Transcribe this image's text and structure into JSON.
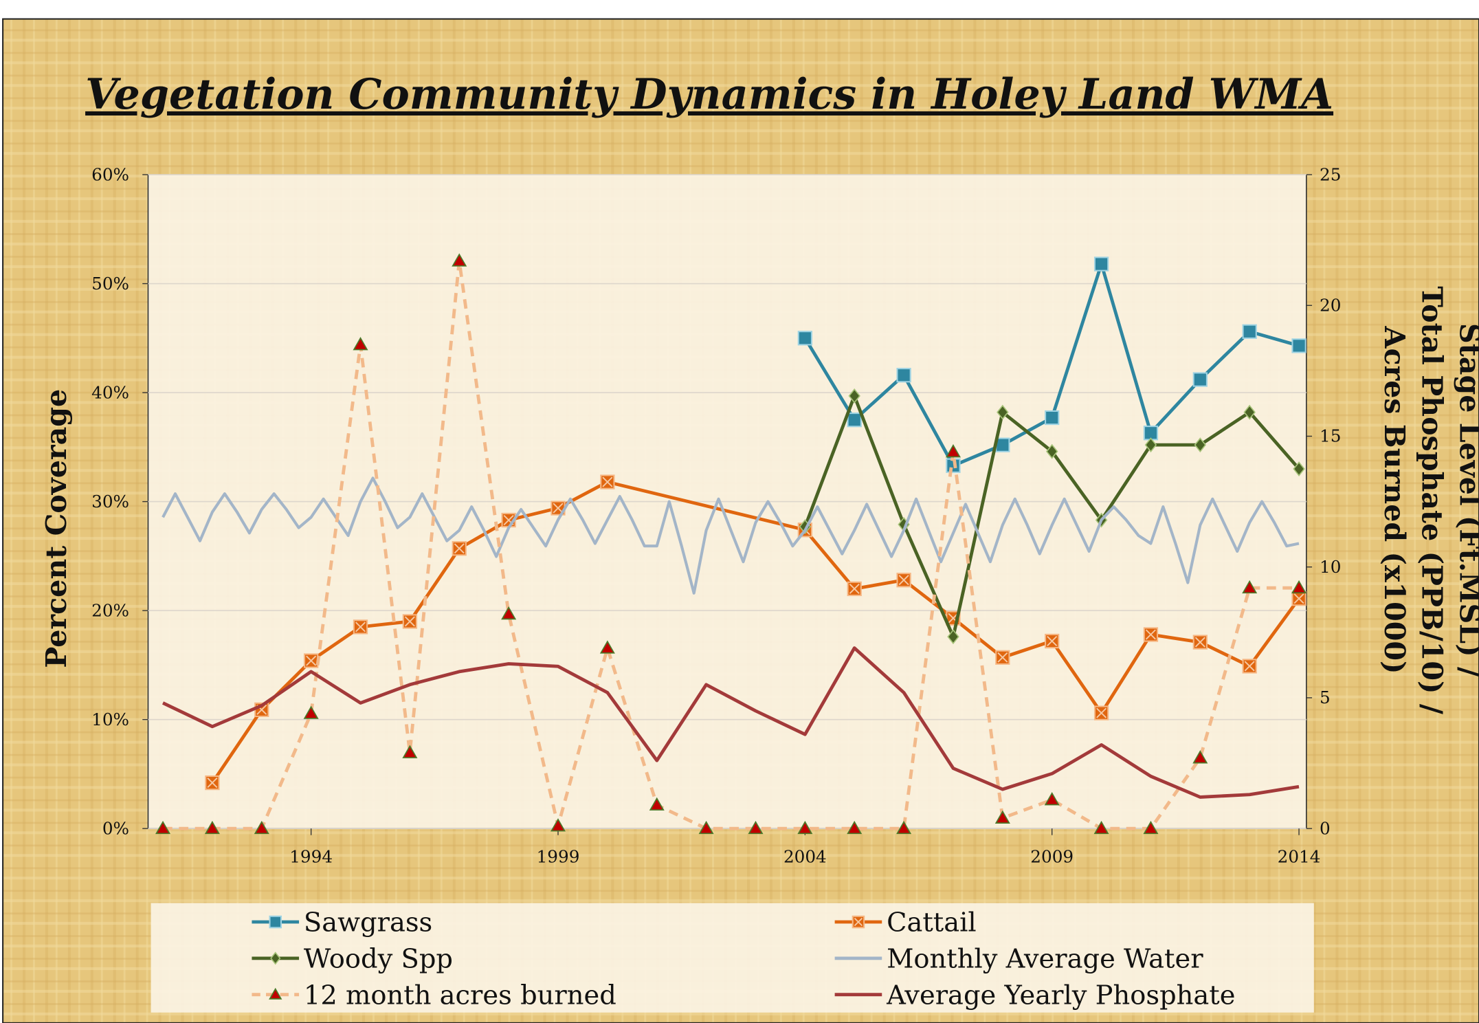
{
  "chart_data": {
    "type": "line",
    "title": "Vegetation Community Dynamics in Holey Land WMA",
    "y_label": "Percent Coverage",
    "y2_label": [
      "Stage Level (Ft.MSL) /",
      "Total Phosphate (PPB/10) /",
      "Acres Burned (x1000)"
    ],
    "xlim": [
      1990.7,
      2014.15
    ],
    "xticks": [
      1994,
      1999,
      2004,
      2009,
      2014
    ],
    "ylim": [
      0,
      60
    ],
    "yticks": [
      {
        "value": 0,
        "label": "0%"
      },
      {
        "value": 10,
        "label": "10%"
      },
      {
        "value": 20,
        "label": "20%"
      },
      {
        "value": 30,
        "label": "30%"
      },
      {
        "value": 40,
        "label": "40%"
      },
      {
        "value": 50,
        "label": "50%"
      },
      {
        "value": 60,
        "label": "60%"
      }
    ],
    "y2lim": [
      0,
      25
    ],
    "y2ticks": [
      0,
      5,
      10,
      15,
      20,
      25
    ],
    "grid": true,
    "legend": "bottom",
    "series": [
      {
        "name": "Sawgrass",
        "color": "#2e86a0",
        "marker": "square",
        "axis": "y",
        "x": [
          2004,
          2005,
          2006,
          2007,
          2008,
          2009,
          2010,
          2011,
          2012,
          2013,
          2014
        ],
        "values": [
          45.0,
          37.5,
          41.6,
          33.3,
          35.2,
          37.7,
          51.8,
          36.3,
          41.2,
          45.6,
          44.3
        ]
      },
      {
        "name": "Cattail",
        "color": "#e0660f",
        "marker": "square-x",
        "axis": "y",
        "x": [
          1992,
          1993,
          1994,
          1995,
          1996,
          1997,
          1998,
          1999,
          2000,
          2004,
          2005,
          2006,
          2007,
          2008,
          2009,
          2010,
          2011,
          2012,
          2013,
          2014
        ],
        "values": [
          4.2,
          10.9,
          15.4,
          18.5,
          19.0,
          25.7,
          28.3,
          29.4,
          31.8,
          27.4,
          22.0,
          22.8,
          19.3,
          15.7,
          17.2,
          10.6,
          17.8,
          17.1,
          14.9,
          21.1
        ]
      },
      {
        "name": "Woody Spp",
        "color": "#4a6324",
        "marker": "diamond",
        "axis": "y",
        "x": [
          2004,
          2005,
          2006,
          2007,
          2008,
          2009,
          2010,
          2011,
          2012,
          2013,
          2014
        ],
        "values": [
          27.7,
          39.7,
          27.9,
          17.6,
          38.2,
          34.6,
          28.3,
          35.2,
          35.2,
          38.2,
          33.0
        ]
      },
      {
        "name": "Monthly Average Water",
        "color": "#a3b5c8",
        "axis": "y2",
        "x": [
          1991,
          1991.25,
          1991.5,
          1991.75,
          1992,
          1992.25,
          1992.5,
          1992.75,
          1993,
          1993.25,
          1993.5,
          1993.75,
          1994,
          1994.25,
          1994.5,
          1994.75,
          1995,
          1995.25,
          1995.5,
          1995.75,
          1996,
          1996.25,
          1996.5,
          1996.75,
          1997,
          1997.25,
          1997.5,
          1997.75,
          1998,
          1998.25,
          1998.5,
          1998.75,
          1999,
          1999.25,
          1999.5,
          1999.75,
          2000,
          2000.25,
          2000.5,
          2000.75,
          2001,
          2001.25,
          2001.5,
          2001.75,
          2002,
          2002.25,
          2002.5,
          2002.75,
          2003,
          2003.25,
          2003.5,
          2003.75,
          2004,
          2004.25,
          2004.5,
          2004.75,
          2005,
          2005.25,
          2005.5,
          2005.75,
          2006,
          2006.25,
          2006.5,
          2006.75,
          2007,
          2007.25,
          2007.5,
          2007.75,
          2008,
          2008.25,
          2008.5,
          2008.75,
          2009,
          2009.25,
          2009.5,
          2009.75,
          2010,
          2010.25,
          2010.5,
          2010.75,
          2011,
          2011.25,
          2011.5,
          2011.75,
          2012,
          2012.25,
          2012.5,
          2012.75,
          2013,
          2013.25,
          2013.5,
          2013.75,
          2014
        ],
        "values": [
          11.9,
          12.8,
          11.9,
          11.0,
          12.1,
          12.8,
          12.1,
          11.3,
          12.2,
          12.8,
          12.2,
          11.5,
          11.9,
          12.6,
          11.9,
          11.2,
          12.5,
          13.4,
          12.5,
          11.5,
          11.9,
          12.8,
          11.9,
          11.0,
          11.4,
          12.3,
          11.4,
          10.4,
          11.5,
          12.2,
          11.5,
          10.8,
          11.8,
          12.6,
          11.8,
          10.9,
          11.8,
          12.7,
          11.8,
          10.8,
          10.8,
          12.5,
          10.8,
          9.0,
          11.4,
          12.6,
          11.4,
          10.2,
          11.7,
          12.5,
          11.7,
          10.8,
          11.4,
          12.3,
          11.4,
          10.5,
          11.4,
          12.4,
          11.4,
          10.4,
          11.4,
          12.6,
          11.4,
          10.2,
          11.3,
          12.4,
          11.3,
          10.2,
          11.6,
          12.6,
          11.6,
          10.5,
          11.6,
          12.6,
          11.6,
          10.6,
          11.8,
          12.3,
          11.8,
          11.2,
          10.9,
          12.3,
          10.9,
          9.4,
          11.6,
          12.6,
          11.6,
          10.6,
          11.7,
          12.5,
          11.7,
          10.8,
          10.9
        ]
      },
      {
        "name": "12 month acres burned",
        "color": "#f2b98a",
        "marker": "triangle",
        "marker_color": "#c00000",
        "dash": true,
        "axis": "y2",
        "x": [
          1991,
          1992,
          1993,
          1994,
          1995,
          1996,
          1997,
          1998,
          1999,
          2000,
          2001,
          2002,
          2003,
          2004,
          2005,
          2006,
          2007,
          2008,
          2009,
          2010,
          2011,
          2012,
          2013,
          2014
        ],
        "values": [
          0,
          0,
          0,
          4.4,
          18.5,
          2.9,
          21.7,
          8.2,
          0.1,
          6.9,
          0.9,
          0,
          0,
          0,
          0,
          0,
          14.4,
          0.4,
          1.1,
          0,
          0,
          2.7,
          9.2,
          9.2
        ]
      },
      {
        "name": "Average Yearly Phosphate",
        "color": "#a33a3a",
        "axis": "y2",
        "x": [
          1991,
          1992,
          1993,
          1994,
          1995,
          1996,
          1997,
          1998,
          1999,
          2000,
          2001,
          2002,
          2003,
          2004,
          2005,
          2006,
          2007,
          2008,
          2009,
          2010,
          2011,
          2012,
          2013,
          2014
        ],
        "values": [
          4.8,
          3.9,
          4.7,
          6.0,
          4.8,
          5.5,
          6.0,
          6.3,
          6.2,
          5.2,
          2.6,
          5.5,
          4.5,
          3.6,
          6.9,
          5.2,
          2.3,
          1.5,
          2.1,
          3.2,
          2.0,
          1.2,
          1.3,
          1.6
        ]
      }
    ]
  }
}
